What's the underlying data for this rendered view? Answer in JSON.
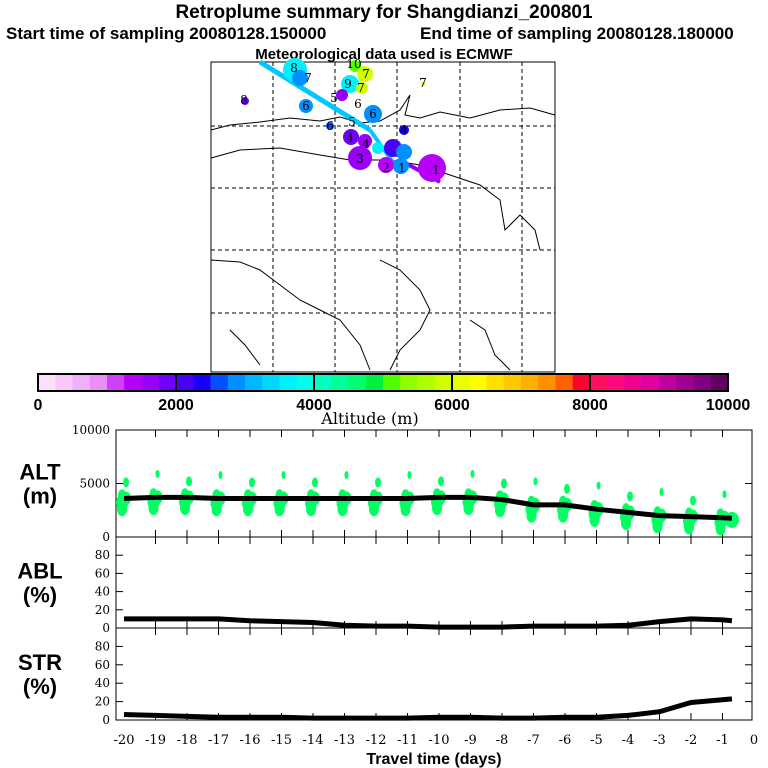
{
  "header": {
    "title": "Retroplume summary for Shangdianzi_200801",
    "start": "Start time of sampling 20080128.150000",
    "end": "End time of sampling 20080128.180000",
    "met": "Meteorological data used is ECMWF"
  },
  "colorbar": {
    "label": "Altitude (m)",
    "ticks": [
      "0",
      "2000",
      "4000",
      "6000",
      "8000",
      "10000"
    ],
    "colors": [
      "#fde0f8",
      "#f8c8f8",
      "#f0b0f8",
      "#e890f8",
      "#d040f8",
      "#b800f8",
      "#9800f8",
      "#7000f8",
      "#4800f8",
      "#1800f8",
      "#0050ff",
      "#0090ff",
      "#00b8ff",
      "#00d8ff",
      "#00f0ff",
      "#00ffe8",
      "#00ffc0",
      "#00ff98",
      "#00ff70",
      "#00f040",
      "#50ff00",
      "#90ff00",
      "#b0ff00",
      "#d0ff00",
      "#e8ff00",
      "#ffff00",
      "#ffe000",
      "#ffc800",
      "#ffb000",
      "#ff9000",
      "#ff6000",
      "#ff0030",
      "#ff1060",
      "#ff0880",
      "#f00090",
      "#e000a0",
      "#c000a0",
      "#a00090",
      "#800080",
      "#600060"
    ]
  },
  "chart_data": [
    {
      "type": "line",
      "panel": "ALT",
      "ylabel": "ALT\n(m)",
      "ylabel_lines": [
        "ALT",
        "(m)"
      ],
      "ylim": [
        0,
        10000
      ],
      "yticks": [
        "0",
        "5000",
        "10000"
      ],
      "yticks_values": [
        0,
        5000,
        10000
      ],
      "x": [
        -20,
        -19,
        -18,
        -17,
        -16,
        -15,
        -14,
        -13,
        -12,
        -11,
        -10,
        -9,
        -8,
        -7,
        -6,
        -5,
        -4,
        -3,
        -2,
        -1,
        -0.7
      ],
      "values": [
        3600,
        3700,
        3700,
        3600,
        3600,
        3600,
        3600,
        3600,
        3600,
        3600,
        3700,
        3700,
        3500,
        3000,
        3000,
        2600,
        2300,
        2000,
        1900,
        1800,
        1750
      ],
      "scatter_color": "#00ff60"
    },
    {
      "type": "line",
      "panel": "ABL",
      "ylabel_lines": [
        "ABL",
        "(%)"
      ],
      "ylim": [
        0,
        100
      ],
      "yticks": [
        "0",
        "20",
        "40",
        "60",
        "80"
      ],
      "yticks_values": [
        0,
        20,
        40,
        60,
        80
      ],
      "x": [
        -20,
        -19,
        -18,
        -17,
        -16,
        -15,
        -14,
        -13,
        -12,
        -11,
        -10,
        -9,
        -8,
        -7,
        -6,
        -5,
        -4,
        -3,
        -2,
        -1,
        -0.7
      ],
      "values": [
        10,
        10,
        10,
        10,
        8,
        7,
        6,
        3,
        2,
        2,
        1,
        1,
        1,
        2,
        2,
        2,
        3,
        7,
        10,
        9,
        8
      ]
    },
    {
      "type": "line",
      "panel": "STR",
      "ylabel_lines": [
        "STR",
        "(%)"
      ],
      "ylim": [
        0,
        100
      ],
      "yticks": [
        "0",
        "20",
        "40",
        "60",
        "80"
      ],
      "yticks_values": [
        0,
        20,
        40,
        60,
        80
      ],
      "x": [
        -20,
        -19,
        -18,
        -17,
        -16,
        -15,
        -14,
        -13,
        -12,
        -11,
        -10,
        -9,
        -8,
        -7,
        -6,
        -5,
        -4,
        -3,
        -2,
        -1,
        -0.7
      ],
      "values": [
        6,
        5,
        4,
        3,
        3,
        3,
        2,
        2,
        2,
        2,
        3,
        3,
        2,
        2,
        3,
        3,
        5,
        9,
        19,
        22,
        23
      ],
      "xlabel": "Travel time (days)",
      "xticks": [
        "-20",
        "-19",
        "-18",
        "-17",
        "-16",
        "-15",
        "-14",
        "-13",
        "-12",
        "-11",
        "-10",
        "-9",
        "-8",
        "-7",
        "-6",
        "-5",
        "-4",
        "-3",
        "-2",
        "-1",
        "0"
      ],
      "xlim": [
        -20.25,
        0
      ]
    }
  ],
  "map": {
    "labels": [
      "8",
      "7",
      "8",
      "10",
      "7",
      "9",
      "7",
      "6",
      "6",
      "6",
      "6",
      "5",
      "4",
      "4",
      "3",
      "5",
      "2",
      "1",
      "1",
      "7",
      "4"
    ]
  }
}
